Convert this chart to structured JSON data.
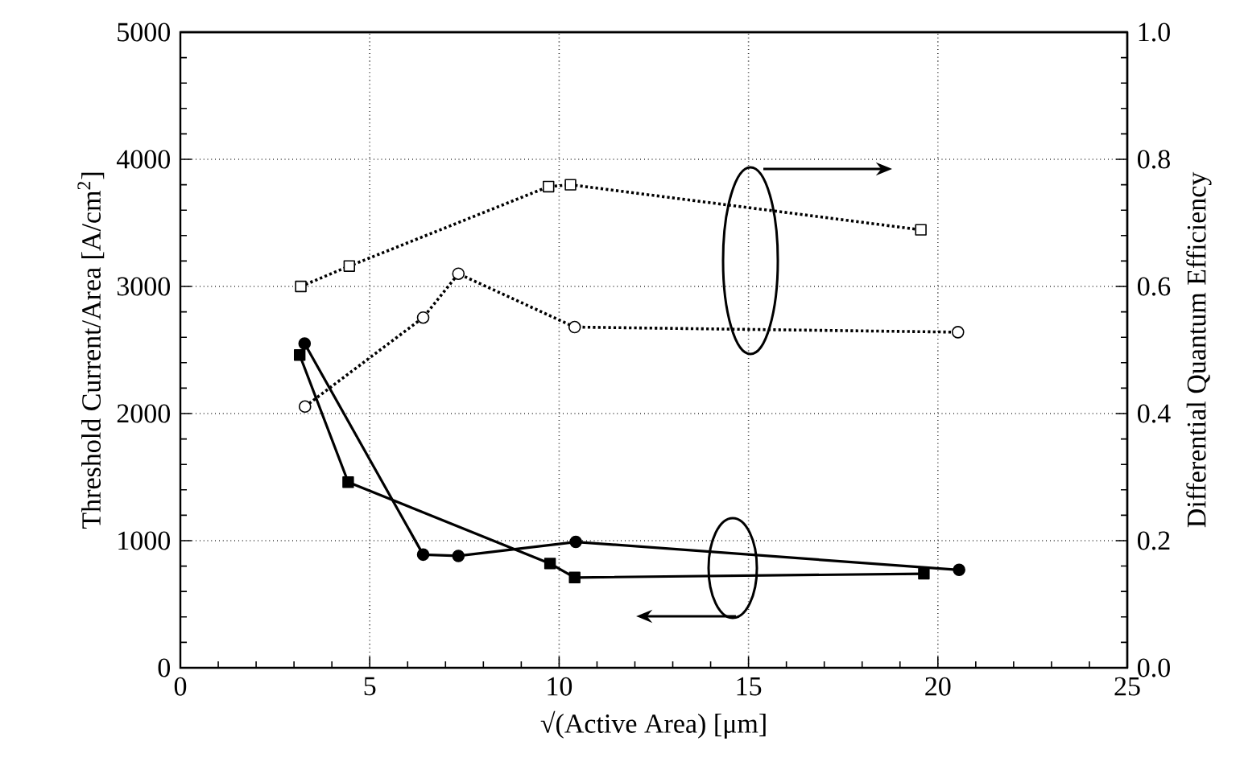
{
  "chart_data": {
    "type": "line",
    "xlabel": "√(Active Area) [μm]",
    "ylabel": "Threshold Current/Area [A/cm$^{2}$]",
    "y2label": "Differential Quantum Efficiency",
    "xlim": [
      0,
      25
    ],
    "xticks": [
      0,
      5,
      10,
      15,
      20,
      25
    ],
    "ylim": [
      0,
      5000
    ],
    "yticks": [
      0,
      1000,
      2000,
      3000,
      4000,
      5000
    ],
    "y2lim": [
      0,
      1
    ],
    "y2ticks": [
      {
        "value": 0,
        "label": "0.0"
      },
      0.2,
      0.4,
      0.6,
      0.8,
      {
        "value": 1,
        "label": "1.0"
      }
    ],
    "grid": true,
    "series": [
      {
        "color": "#000000",
        "marker": "circle",
        "line_style": "solid",
        "x": [
          3.28,
          6.41,
          7.34,
          10.44,
          20.56
        ],
        "values": [
          2550,
          890,
          880,
          990,
          770
        ]
      },
      {
        "color": "#000000",
        "marker": "square",
        "line_style": "solid",
        "x": [
          3.15,
          4.43,
          9.76,
          10.41,
          19.63
        ],
        "values": [
          2460,
          1460,
          820,
          710,
          740
        ]
      },
      {
        "color": "#000000",
        "marker": "square",
        "line_style": "dotted",
        "axis": "y2",
        "x": [
          3.18,
          4.46,
          9.72,
          10.3,
          19.55
        ],
        "values": [
          0.6,
          0.632,
          0.757,
          0.76,
          0.689
        ]
      },
      {
        "color": "#000000",
        "marker": "circle",
        "line_style": "dotted",
        "axis": "y2",
        "x": [
          3.29,
          6.41,
          7.34,
          10.41,
          20.53
        ],
        "values": [
          0.411,
          0.551,
          0.62,
          0.536,
          0.528
        ]
      }
    ]
  }
}
